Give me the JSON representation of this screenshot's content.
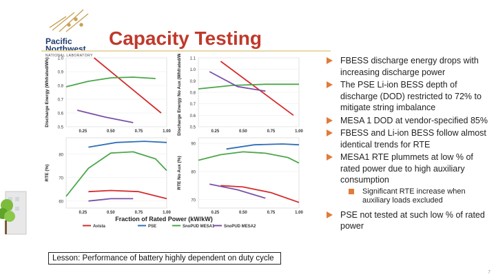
{
  "logo": {
    "line1": "Pacific",
    "line2": "Northwest",
    "line3": "NATIONAL LABORATORY"
  },
  "title": "Capacity Testing",
  "colors": {
    "title": "#c0392b",
    "bullet": "#e07b39",
    "avista": "#d62b2b",
    "pse": "#2f6fb8",
    "snopud_mesa1": "#4aa64a",
    "snopud_mesa2": "#7a4fa6"
  },
  "bullets": [
    {
      "text": "FBESS discharge energy drops with increasing discharge power"
    },
    {
      "text": "The PSE Li-ion BESS depth of discharge (DOD) restricted to 72% to mitigate string imbalance"
    },
    {
      "text": "MESA 1 DOD at vendor-specified 85%"
    },
    {
      "text": "FBESS and Li-ion BESS follow almost identical trends for RTE"
    },
    {
      "text": "MESA1 RTE plummets at low % of rated power due to high auxiliary consumption"
    }
  ],
  "sub_bullet": "Significant RTE increase when auxiliary loads excluded",
  "last_bullet": "PSE not tested at such low % of rated power",
  "lesson": "Lesson: Performance of battery highly dependent on duty cycle",
  "page_number": "7",
  "chart_data": [
    {
      "type": "line",
      "title": "",
      "xlabel": "",
      "ylabel": "Discharge Energy (Whfrated/Wh)",
      "xlim": [
        0.1,
        1.0
      ],
      "ylim": [
        0.5,
        1.0
      ],
      "xticks": [
        "0.25",
        "0.50",
        "0.75",
        "1.00"
      ],
      "yticks": [
        "0.5",
        "0.6",
        "0.7",
        "0.8",
        "0.9",
        "1.0"
      ],
      "series": [
        {
          "name": "Avista",
          "x": [
            0.35,
            0.95
          ],
          "y": [
            1.0,
            0.6
          ]
        },
        {
          "name": "SnoPUD MESA1",
          "x": [
            0.1,
            0.3,
            0.5,
            0.7,
            0.9
          ],
          "y": [
            0.79,
            0.83,
            0.855,
            0.86,
            0.85
          ]
        },
        {
          "name": "SnoPUD MESA2",
          "x": [
            0.2,
            0.45,
            0.7
          ],
          "y": [
            0.62,
            0.57,
            0.53
          ]
        }
      ]
    },
    {
      "type": "line",
      "title": "",
      "xlabel": "",
      "ylabel": "Discharge Energy No Aux (Whfrated/Wh)",
      "xlim": [
        0.1,
        1.0
      ],
      "ylim": [
        0.5,
        1.1
      ],
      "xticks": [
        "0.25",
        "0.50",
        "0.75",
        "1.00"
      ],
      "yticks": [
        "0.5",
        "0.6",
        "0.7",
        "0.8",
        "0.9",
        "1.0",
        "1.1"
      ],
      "series": [
        {
          "name": "Avista",
          "x": [
            0.3,
            0.95
          ],
          "y": [
            1.07,
            0.6
          ]
        },
        {
          "name": "SnoPUD MESA1",
          "x": [
            0.1,
            0.4,
            0.7,
            1.0
          ],
          "y": [
            0.83,
            0.86,
            0.87,
            0.87
          ]
        },
        {
          "name": "SnoPUD MESA2",
          "x": [
            0.2,
            0.45,
            0.7
          ],
          "y": [
            0.98,
            0.85,
            0.81
          ]
        }
      ]
    },
    {
      "type": "line",
      "title": "",
      "xlabel": "",
      "ylabel": "RTE (%)",
      "xlim": [
        0.1,
        1.0
      ],
      "ylim": [
        57,
        87
      ],
      "xticks": [
        "0.25",
        "0.50",
        "0.75",
        "1.00"
      ],
      "yticks": [
        "60",
        "70",
        "80"
      ],
      "series": [
        {
          "name": "Avista",
          "x": [
            0.3,
            0.5,
            0.75,
            1.0
          ],
          "y": [
            64,
            64.5,
            64,
            61
          ]
        },
        {
          "name": "PSE",
          "x": [
            0.3,
            0.55,
            0.8,
            1.0
          ],
          "y": [
            83,
            85,
            85.5,
            85
          ]
        },
        {
          "name": "SnoPUD MESA1",
          "x": [
            0.1,
            0.3,
            0.5,
            0.7,
            0.9,
            1.0
          ],
          "y": [
            62,
            74,
            80.5,
            81,
            78,
            73
          ]
        },
        {
          "name": "SnoPUD MESA2",
          "x": [
            0.3,
            0.5,
            0.7
          ],
          "y": [
            60,
            61,
            61
          ]
        }
      ]
    },
    {
      "type": "line",
      "title": "",
      "xlabel": "",
      "ylabel": "RTE No Aux (%)",
      "xlim": [
        0.1,
        1.0
      ],
      "ylim": [
        67,
        92
      ],
      "xticks": [
        "0.25",
        "0.50",
        "0.75",
        "1.00"
      ],
      "yticks": [
        "70",
        "80",
        "90"
      ],
      "series": [
        {
          "name": "Avista",
          "x": [
            0.3,
            0.5,
            0.75,
            1.0
          ],
          "y": [
            75,
            74.5,
            72.5,
            69
          ]
        },
        {
          "name": "PSE",
          "x": [
            0.35,
            0.6,
            0.85,
            1.0
          ],
          "y": [
            88,
            89.5,
            89.8,
            89.5
          ]
        },
        {
          "name": "SnoPUD MESA1",
          "x": [
            0.1,
            0.3,
            0.5,
            0.7,
            0.9,
            1.0
          ],
          "y": [
            84,
            86,
            87,
            86.5,
            85,
            83
          ]
        },
        {
          "name": "SnoPUD MESA2",
          "x": [
            0.2,
            0.45,
            0.7
          ],
          "y": [
            75.5,
            73.5,
            70.5
          ]
        }
      ]
    }
  ],
  "figure_xlabel": "Fraction of Rated Power (kW/kW)",
  "legend": [
    {
      "name": "Avista",
      "color": "#d62b2b"
    },
    {
      "name": "PSE",
      "color": "#2f6fb8"
    },
    {
      "name": "SnoPUD MESA1",
      "color": "#4aa64a"
    },
    {
      "name": "SnoPUD MESA2",
      "color": "#7a4fa6"
    }
  ]
}
